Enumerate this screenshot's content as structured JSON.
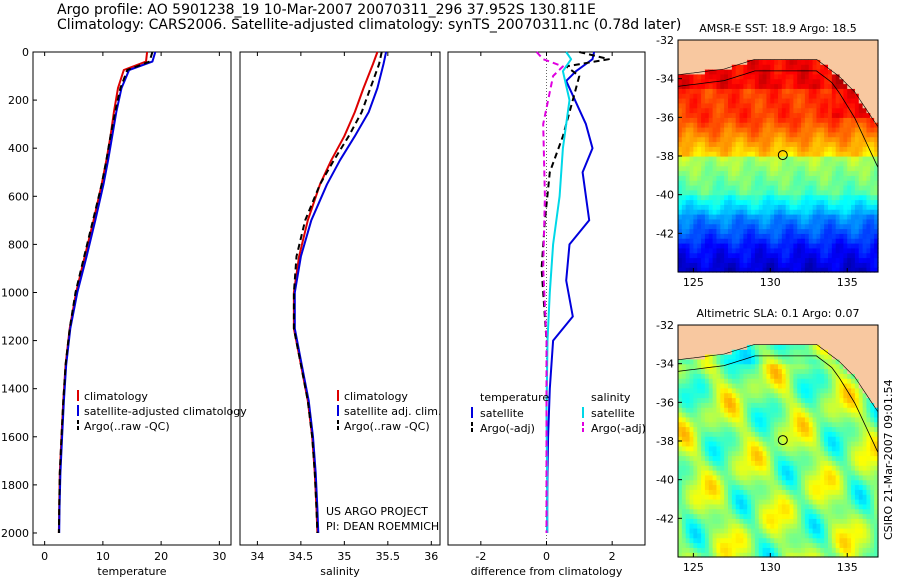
{
  "header": {
    "line1": "Argo profile: AO 5901238_19 10-Mar-2007 20070311_296 37.952S 130.811E",
    "line2": "Climatology: CARS2006. Satellite-adjusted climatology: synTS_20070311.nc (0.78d later)"
  },
  "side_text": "CSIRO 21-Mar-2007 09:01:54",
  "colors": {
    "climatology": "#dd0000",
    "satellite": "#0000dd",
    "argo": "#000000",
    "satellite_diff": "#00d8e8",
    "argo_adj": "#e000e0",
    "land": "#f8c8a0"
  },
  "chart_data": [
    {
      "type": "line",
      "panel": "temperature",
      "xlabel": "temperature",
      "ylabel": "",
      "xlim": [
        -2,
        32
      ],
      "ylim": [
        2050,
        0
      ],
      "xticks": [
        0,
        10,
        20,
        30
      ],
      "yticks": [
        0,
        200,
        400,
        600,
        800,
        1000,
        1200,
        1400,
        1600,
        1800,
        2000
      ],
      "legend": [
        "climatology",
        "satellite-adjusted climatology",
        "Argo(..raw -QC)"
      ],
      "series": [
        {
          "name": "climatology",
          "color": "#dd0000",
          "style": "solid",
          "x": [
            17.6,
            17.4,
            13.6,
            12.6,
            11.9,
            11.3,
            10.6,
            9.8,
            8.4,
            6.9,
            5.4,
            4.3,
            3.6,
            3.2,
            2.9,
            2.6,
            2.5,
            2.45
          ],
          "y": [
            0,
            40,
            75,
            150,
            250,
            350,
            450,
            550,
            700,
            850,
            1000,
            1150,
            1300,
            1450,
            1600,
            1750,
            1900,
            2000
          ]
        },
        {
          "name": "satellite-adjusted climatology",
          "color": "#0000dd",
          "style": "solid",
          "x": [
            19.0,
            18.5,
            14.5,
            13.2,
            12.3,
            11.6,
            10.9,
            10.1,
            8.7,
            7.2,
            5.6,
            4.4,
            3.7,
            3.3,
            3.0,
            2.7,
            2.55,
            2.5
          ],
          "y": [
            0,
            40,
            75,
            150,
            250,
            350,
            450,
            550,
            700,
            850,
            1000,
            1150,
            1300,
            1450,
            1600,
            1750,
            1900,
            2000
          ]
        },
        {
          "name": "Argo(..raw -QC)",
          "color": "#000000",
          "style": "dashed",
          "x": [
            18.5,
            18.0,
            14.2,
            13.0,
            12.1,
            11.3,
            10.6,
            9.8,
            8.3,
            6.8,
            5.3,
            4.3,
            3.6,
            3.2,
            2.9,
            2.6,
            2.5,
            2.45
          ],
          "y": [
            0,
            40,
            75,
            150,
            250,
            350,
            450,
            550,
            700,
            850,
            1000,
            1150,
            1300,
            1450,
            1600,
            1750,
            1900,
            2000
          ]
        }
      ]
    },
    {
      "type": "line",
      "panel": "salinity",
      "xlabel": "salinity",
      "ylabel": "",
      "xlim": [
        33.8,
        36.1
      ],
      "ylim": [
        2050,
        0
      ],
      "xticks": [
        34,
        34.5,
        35,
        35.5,
        36
      ],
      "yticks": [],
      "legend": [
        "climatology",
        "satellite adj. clim.",
        "Argo(..raw -QC)"
      ],
      "annotations": [
        "US ARGO PROJECT",
        "PI: DEAN ROEMMICH"
      ],
      "series": [
        {
          "name": "climatology",
          "color": "#dd0000",
          "style": "solid",
          "x": [
            35.38,
            35.33,
            35.22,
            35.12,
            35.0,
            34.85,
            34.72,
            34.58,
            34.48,
            34.42,
            34.42,
            34.5,
            34.58,
            34.63,
            34.66,
            34.68,
            34.69
          ],
          "y": [
            0,
            50,
            150,
            250,
            350,
            450,
            550,
            700,
            850,
            1000,
            1150,
            1300,
            1450,
            1600,
            1750,
            1900,
            2000
          ]
        },
        {
          "name": "satellite adj. clim.",
          "color": "#0000dd",
          "style": "solid",
          "x": [
            35.48,
            35.45,
            35.38,
            35.28,
            35.12,
            34.95,
            34.8,
            34.62,
            34.5,
            34.43,
            34.43,
            34.51,
            34.59,
            34.64,
            34.67,
            34.69,
            34.7
          ],
          "y": [
            0,
            50,
            150,
            250,
            350,
            450,
            550,
            700,
            850,
            1000,
            1150,
            1300,
            1450,
            1600,
            1750,
            1900,
            2000
          ]
        },
        {
          "name": "Argo(..raw -QC)",
          "color": "#000000",
          "style": "dashed",
          "x": [
            35.43,
            35.4,
            35.3,
            35.2,
            35.05,
            34.88,
            34.72,
            34.55,
            34.45,
            34.42,
            34.42,
            34.5,
            34.58,
            34.63,
            34.66,
            34.68,
            34.69
          ],
          "y": [
            0,
            50,
            150,
            250,
            350,
            450,
            550,
            700,
            850,
            1000,
            1150,
            1300,
            1450,
            1600,
            1750,
            1900,
            2000
          ]
        }
      ]
    },
    {
      "type": "line",
      "panel": "difference",
      "xlabel": "difference from climatology",
      "ylabel": "",
      "xlim": [
        -3,
        3
      ],
      "ylim": [
        2050,
        0
      ],
      "xticks": [
        -2,
        0,
        2
      ],
      "yticks": [],
      "legend_groups": [
        {
          "heading": "temperature",
          "items": [
            "satellite",
            "Argo(-adj)"
          ]
        },
        {
          "heading": "salinity",
          "items": [
            "satellite",
            "Argo(-adj)"
          ]
        }
      ],
      "series": [
        {
          "name": "temperature satellite",
          "color": "#0000dd",
          "style": "solid",
          "x": [
            1.45,
            1.4,
            0.9,
            0.6,
            1.2,
            1.4,
            1.1,
            1.3,
            0.7,
            0.6,
            0.8,
            0.2,
            0.1,
            0.05,
            0.03,
            0.02,
            0.02
          ],
          "y": [
            0,
            30,
            80,
            120,
            300,
            400,
            500,
            700,
            800,
            950,
            1100,
            1200,
            1400,
            1600,
            1750,
            1900,
            2000
          ]
        },
        {
          "name": "temperature Argo(-adj)",
          "color": "#000000",
          "style": "dashed",
          "x": [
            1.0,
            1.9,
            0.6,
            1.0,
            0.8,
            0.5,
            0.1,
            -0.05,
            -0.15,
            -0.1,
            0.0,
            0.0,
            0.0,
            0.0
          ],
          "y": [
            0,
            30,
            60,
            100,
            200,
            350,
            500,
            700,
            900,
            1000,
            1200,
            1500,
            1800,
            2000
          ]
        },
        {
          "name": "salinity satellite",
          "color": "#00d8e8",
          "style": "solid",
          "x": [
            0.6,
            0.75,
            0.5,
            0.7,
            0.5,
            0.4,
            0.2,
            0.1,
            0.03,
            0.0,
            0.02,
            0.02
          ],
          "y": [
            0,
            30,
            80,
            200,
            400,
            600,
            800,
            1000,
            1200,
            1500,
            1800,
            2000
          ]
        },
        {
          "name": "salinity Argo(-adj)",
          "color": "#e000e0",
          "style": "dashed",
          "x": [
            -0.3,
            -0.1,
            0.5,
            0.2,
            -0.1,
            -0.05,
            -0.1,
            0.0,
            0.0,
            0.0
          ],
          "y": [
            0,
            30,
            60,
            100,
            300,
            600,
            900,
            1200,
            1600,
            2000
          ]
        }
      ]
    },
    {
      "type": "heatmap",
      "title": "AMSR-E SST: 18.9 Argo: 18.5",
      "xlim": [
        124,
        137
      ],
      "ylim": [
        -44,
        -32
      ],
      "xticks": [
        125,
        130,
        135
      ],
      "yticks": [
        -32,
        -34,
        -36,
        -38,
        -40,
        -42
      ],
      "marker": {
        "lon": 130.811,
        "lat": -37.952
      },
      "colorscale": "jet"
    },
    {
      "type": "heatmap",
      "title": "Altimetric SLA: 0.1 Argo: 0.07",
      "xlim": [
        124,
        137
      ],
      "ylim": [
        -44,
        -32
      ],
      "xticks": [
        125,
        130,
        135
      ],
      "yticks": [
        -32,
        -34,
        -36,
        -38,
        -40,
        -42
      ],
      "marker": {
        "lon": 130.811,
        "lat": -37.952
      },
      "colorscale": "jet"
    }
  ]
}
